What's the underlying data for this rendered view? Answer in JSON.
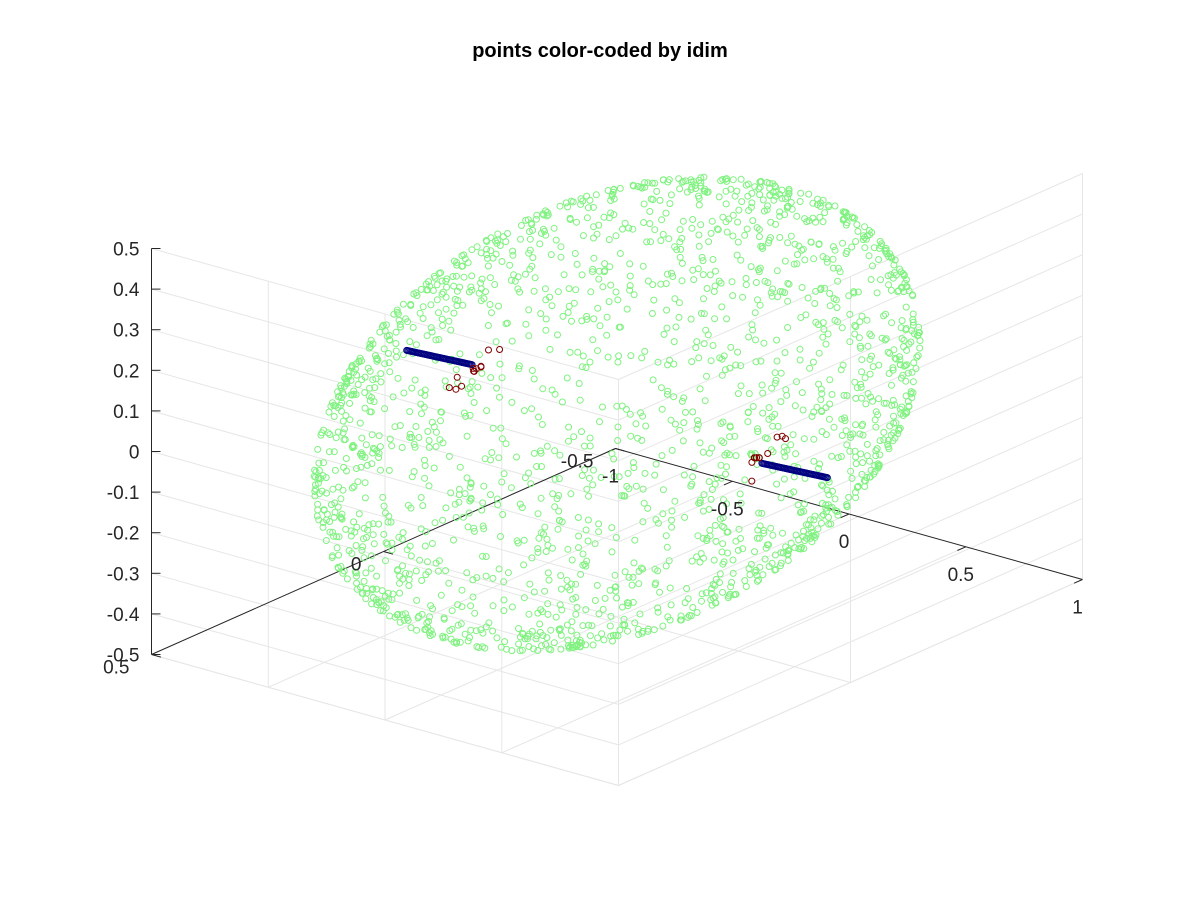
{
  "chart_data": {
    "type": "scatter",
    "dimension": "3d",
    "title": "points color-coded by idim",
    "xlabel": "",
    "ylabel": "",
    "zlabel": "",
    "xlim": [
      -1,
      1
    ],
    "ylim": [
      -0.5,
      0.5
    ],
    "zlim": [
      -0.5,
      0.5
    ],
    "x_ticks": [
      "-1",
      "-0.5",
      "0",
      "0.5",
      "1"
    ],
    "y_ticks": [
      "-0.5",
      "0",
      "0.5"
    ],
    "z_ticks": [
      "-0.5",
      "-0.4",
      "-0.3",
      "-0.2",
      "-0.1",
      "0",
      "0.1",
      "0.2",
      "0.3",
      "0.4",
      "0.5"
    ],
    "grid": true,
    "marker": "open circle",
    "colors": {
      "idim_2": "#7ff27f",
      "idim_1": "#000080",
      "idim_0": "#800000",
      "axis": "#262626",
      "grid": "#e6e6e6"
    },
    "series": [
      {
        "description": "points on an ellipsoidal surface (light green)",
        "shape": "ellipsoid surface",
        "center": [
          0,
          0,
          0
        ],
        "semi_axes": [
          0.7,
          0.55,
          0.5
        ],
        "approx_count": 2000
      },
      {
        "description": "points along a line through the ellipsoid (dark blue)",
        "shape": "line segments",
        "segments": [
          {
            "from": [
              -1.0,
              -0.05,
              -0.03
            ],
            "to": [
              -0.72,
              -0.05,
              -0.02
            ]
          },
          {
            "from": [
              0.72,
              0.05,
              0.02
            ],
            "to": [
              1.0,
              0.05,
              0.03
            ]
          }
        ]
      },
      {
        "description": "points near the line/surface intersections (dark red)",
        "shape": "clusters",
        "clusters": [
          {
            "center": [
              -0.68,
              -0.04,
              -0.02
            ],
            "approx_count": 12
          },
          {
            "center": [
              0.68,
              0.04,
              0.02
            ],
            "approx_count": 12
          }
        ]
      }
    ]
  }
}
